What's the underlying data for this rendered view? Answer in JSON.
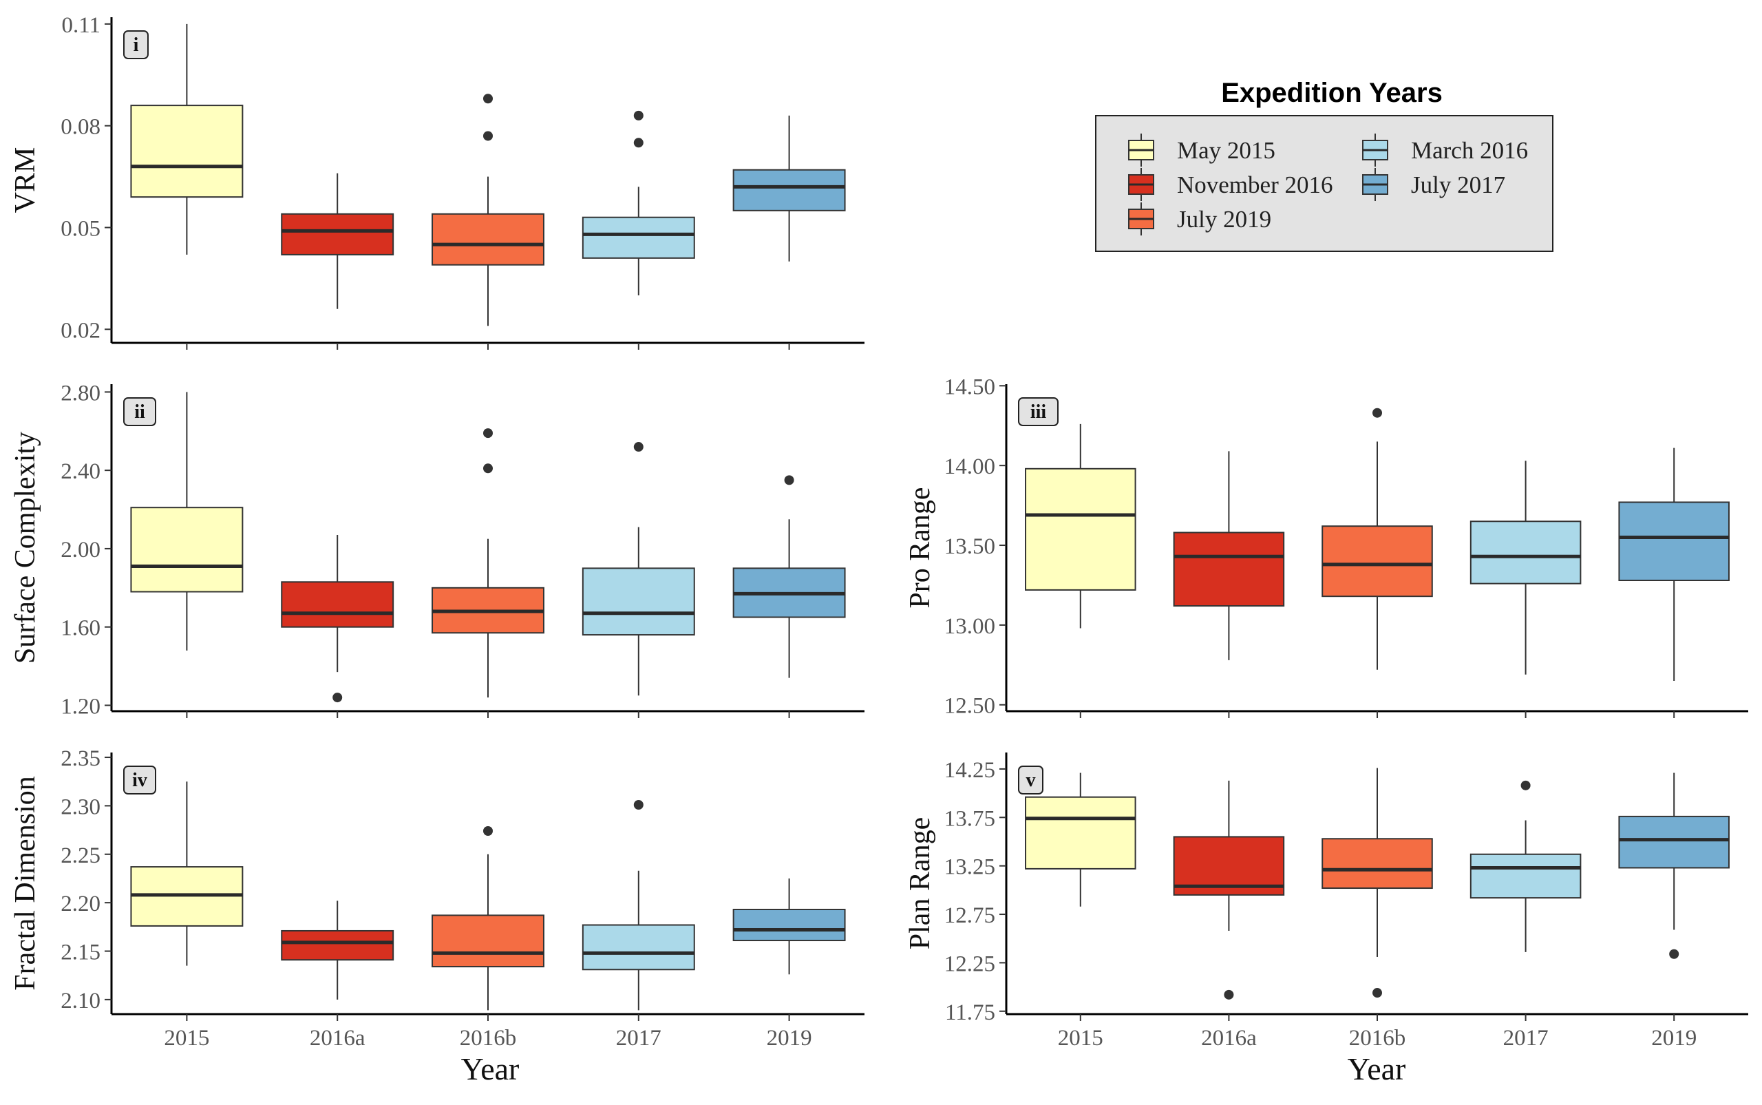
{
  "colors": {
    "2015": "#FFFFBF",
    "2016a": "#D7301F",
    "2016b": "#F46D43",
    "2017": "#ABD9E9",
    "2019": "#74ADD1"
  },
  "legend": {
    "title": "Expedition Years",
    "items": [
      {
        "label": "May 2015",
        "color_key": "2015"
      },
      {
        "label": "November 2016",
        "color_key": "2016a"
      },
      {
        "label": "July 2019",
        "color_key": "2016b"
      },
      {
        "label": "March 2016",
        "color_key": "2017"
      },
      {
        "label": "July 2017",
        "color_key": "2019"
      }
    ]
  },
  "x_axis": {
    "title": "Year",
    "categories": [
      "2015",
      "2016a",
      "2016b",
      "2017",
      "2019"
    ]
  },
  "chart_data": [
    {
      "type": "box",
      "panel": "i",
      "ylabel": "VRM",
      "yticks": [
        "0.02",
        "0.05",
        "0.08",
        "0.11"
      ],
      "ylim": [
        0.016,
        0.112
      ],
      "categories": [
        "2015",
        "2016a",
        "2016b",
        "2017",
        "2019"
      ],
      "boxes": [
        {
          "min": 0.042,
          "q1": 0.059,
          "median": 0.068,
          "q3": 0.086,
          "max": 0.11,
          "outliers": []
        },
        {
          "min": 0.026,
          "q1": 0.042,
          "median": 0.049,
          "q3": 0.054,
          "max": 0.066,
          "outliers": []
        },
        {
          "min": 0.021,
          "q1": 0.039,
          "median": 0.045,
          "q3": 0.054,
          "max": 0.065,
          "outliers": [
            0.077,
            0.088
          ]
        },
        {
          "min": 0.03,
          "q1": 0.041,
          "median": 0.048,
          "q3": 0.053,
          "max": 0.062,
          "outliers": [
            0.075,
            0.083
          ]
        },
        {
          "min": 0.04,
          "q1": 0.055,
          "median": 0.062,
          "q3": 0.067,
          "max": 0.083,
          "outliers": []
        }
      ]
    },
    {
      "type": "box",
      "panel": "ii",
      "ylabel": "Surface Complexity",
      "yticks": [
        "1.20",
        "1.60",
        "2.00",
        "2.40",
        "2.80"
      ],
      "ylim": [
        1.17,
        2.84
      ],
      "categories": [
        "2015",
        "2016a",
        "2016b",
        "2017",
        "2019"
      ],
      "boxes": [
        {
          "min": 1.48,
          "q1": 1.78,
          "median": 1.91,
          "q3": 2.21,
          "max": 2.8,
          "outliers": []
        },
        {
          "min": 1.37,
          "q1": 1.6,
          "median": 1.67,
          "q3": 1.83,
          "max": 2.07,
          "outliers": [
            1.24
          ]
        },
        {
          "min": 1.24,
          "q1": 1.57,
          "median": 1.68,
          "q3": 1.8,
          "max": 2.05,
          "outliers": [
            2.41,
            2.59
          ]
        },
        {
          "min": 1.25,
          "q1": 1.56,
          "median": 1.67,
          "q3": 1.9,
          "max": 2.11,
          "outliers": [
            2.52
          ]
        },
        {
          "min": 1.34,
          "q1": 1.65,
          "median": 1.77,
          "q3": 1.9,
          "max": 2.15,
          "outliers": [
            2.35
          ]
        }
      ]
    },
    {
      "type": "box",
      "panel": "iii",
      "ylabel": "Pro Range",
      "yticks": [
        "12.50",
        "13.00",
        "13.50",
        "14.00",
        "14.50"
      ],
      "ylim": [
        12.46,
        14.51
      ],
      "categories": [
        "2015",
        "2016a",
        "2016b",
        "2017",
        "2019"
      ],
      "boxes": [
        {
          "min": 12.98,
          "q1": 13.22,
          "median": 13.69,
          "q3": 13.98,
          "max": 14.26,
          "outliers": []
        },
        {
          "min": 12.78,
          "q1": 13.12,
          "median": 13.43,
          "q3": 13.58,
          "max": 14.09,
          "outliers": []
        },
        {
          "min": 12.72,
          "q1": 13.18,
          "median": 13.38,
          "q3": 13.62,
          "max": 14.15,
          "outliers": [
            14.33
          ]
        },
        {
          "min": 12.69,
          "q1": 13.26,
          "median": 13.43,
          "q3": 13.65,
          "max": 14.03,
          "outliers": []
        },
        {
          "min": 12.65,
          "q1": 13.28,
          "median": 13.55,
          "q3": 13.77,
          "max": 14.11,
          "outliers": []
        }
      ]
    },
    {
      "type": "box",
      "panel": "iv",
      "ylabel": "Fractal Dimension",
      "yticks": [
        "2.10",
        "2.15",
        "2.20",
        "2.25",
        "2.30",
        "2.35"
      ],
      "ylim": [
        2.085,
        2.355
      ],
      "categories": [
        "2015",
        "2016a",
        "2016b",
        "2017",
        "2019"
      ],
      "boxes": [
        {
          "min": 2.135,
          "q1": 2.176,
          "median": 2.208,
          "q3": 2.237,
          "max": 2.325,
          "outliers": []
        },
        {
          "min": 2.1,
          "q1": 2.141,
          "median": 2.159,
          "q3": 2.171,
          "max": 2.202,
          "outliers": []
        },
        {
          "min": 2.089,
          "q1": 2.134,
          "median": 2.148,
          "q3": 2.187,
          "max": 2.25,
          "outliers": [
            2.274
          ]
        },
        {
          "min": 2.089,
          "q1": 2.131,
          "median": 2.148,
          "q3": 2.177,
          "max": 2.233,
          "outliers": [
            2.301
          ]
        },
        {
          "min": 2.126,
          "q1": 2.161,
          "median": 2.172,
          "q3": 2.193,
          "max": 2.225,
          "outliers": []
        }
      ]
    },
    {
      "type": "box",
      "panel": "v",
      "ylabel": "Plan Range",
      "yticks": [
        "11.75",
        "12.25",
        "12.75",
        "13.25",
        "13.75",
        "14.25"
      ],
      "ylim": [
        11.72,
        14.42
      ],
      "categories": [
        "2015",
        "2016a",
        "2016b",
        "2017",
        "2019"
      ],
      "boxes": [
        {
          "min": 12.83,
          "q1": 13.22,
          "median": 13.74,
          "q3": 13.96,
          "max": 14.21,
          "outliers": []
        },
        {
          "min": 12.58,
          "q1": 12.95,
          "median": 13.04,
          "q3": 13.55,
          "max": 14.13,
          "outliers": [
            11.92
          ]
        },
        {
          "min": 12.31,
          "q1": 13.02,
          "median": 13.21,
          "q3": 13.53,
          "max": 14.26,
          "outliers": [
            11.94
          ]
        },
        {
          "min": 12.36,
          "q1": 12.92,
          "median": 13.23,
          "q3": 13.37,
          "max": 13.72,
          "outliers": [
            14.08
          ]
        },
        {
          "min": 12.59,
          "q1": 13.23,
          "median": 13.52,
          "q3": 13.76,
          "max": 14.21,
          "outliers": [
            12.34
          ]
        }
      ]
    }
  ]
}
